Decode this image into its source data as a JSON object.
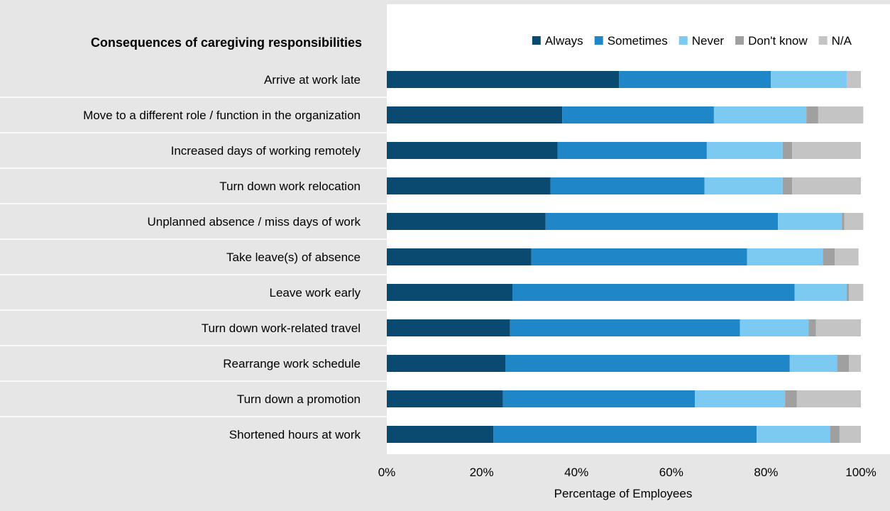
{
  "chart_data": {
    "type": "bar",
    "orientation": "horizontal",
    "stacked": true,
    "title": "Consequences of caregiving responsibilities",
    "xlabel": "Percentage of Employees",
    "ylabel": "",
    "xlim": [
      0,
      100
    ],
    "x_ticks": [
      "0%",
      "20%",
      "40%",
      "60%",
      "80%",
      "100%"
    ],
    "legend_position": "top-right",
    "grid": false,
    "categories": [
      "Arrive at work late",
      "Move to a different role / function in the organization",
      "Increased days of working remotely",
      "Turn down work relocation",
      "Unplanned absence / miss days of work",
      "Take leave(s) of absence",
      "Leave work early",
      "Turn down work-related travel",
      "Rearrange work schedule",
      "Turn down a promotion",
      "Shortened hours at work"
    ],
    "series": [
      {
        "name": "Always",
        "color": "#0b4a70",
        "values": [
          49,
          37,
          36,
          34.5,
          33.5,
          30.5,
          26.5,
          26,
          25,
          24.5,
          22.5
        ]
      },
      {
        "name": "Sometimes",
        "color": "#1f86c8",
        "values": [
          32,
          32,
          31.5,
          32.5,
          49,
          45.5,
          59.5,
          48.5,
          60,
          40.5,
          55.5
        ]
      },
      {
        "name": "Never",
        "color": "#7ccaf2",
        "values": [
          16,
          19.5,
          16,
          16.5,
          13.5,
          16,
          11,
          14.5,
          10,
          19,
          15.5
        ]
      },
      {
        "name": "Don't know",
        "color": "#a0a0a0",
        "values": [
          0,
          2.5,
          2,
          2,
          0.5,
          2.5,
          0.5,
          1.5,
          2.5,
          2.5,
          2
        ]
      },
      {
        "name": "N/A",
        "color": "#c4c4c4",
        "values": [
          3,
          9.5,
          14.5,
          14.5,
          4,
          5,
          3,
          9.5,
          2.5,
          13.5,
          4.5
        ]
      }
    ]
  }
}
